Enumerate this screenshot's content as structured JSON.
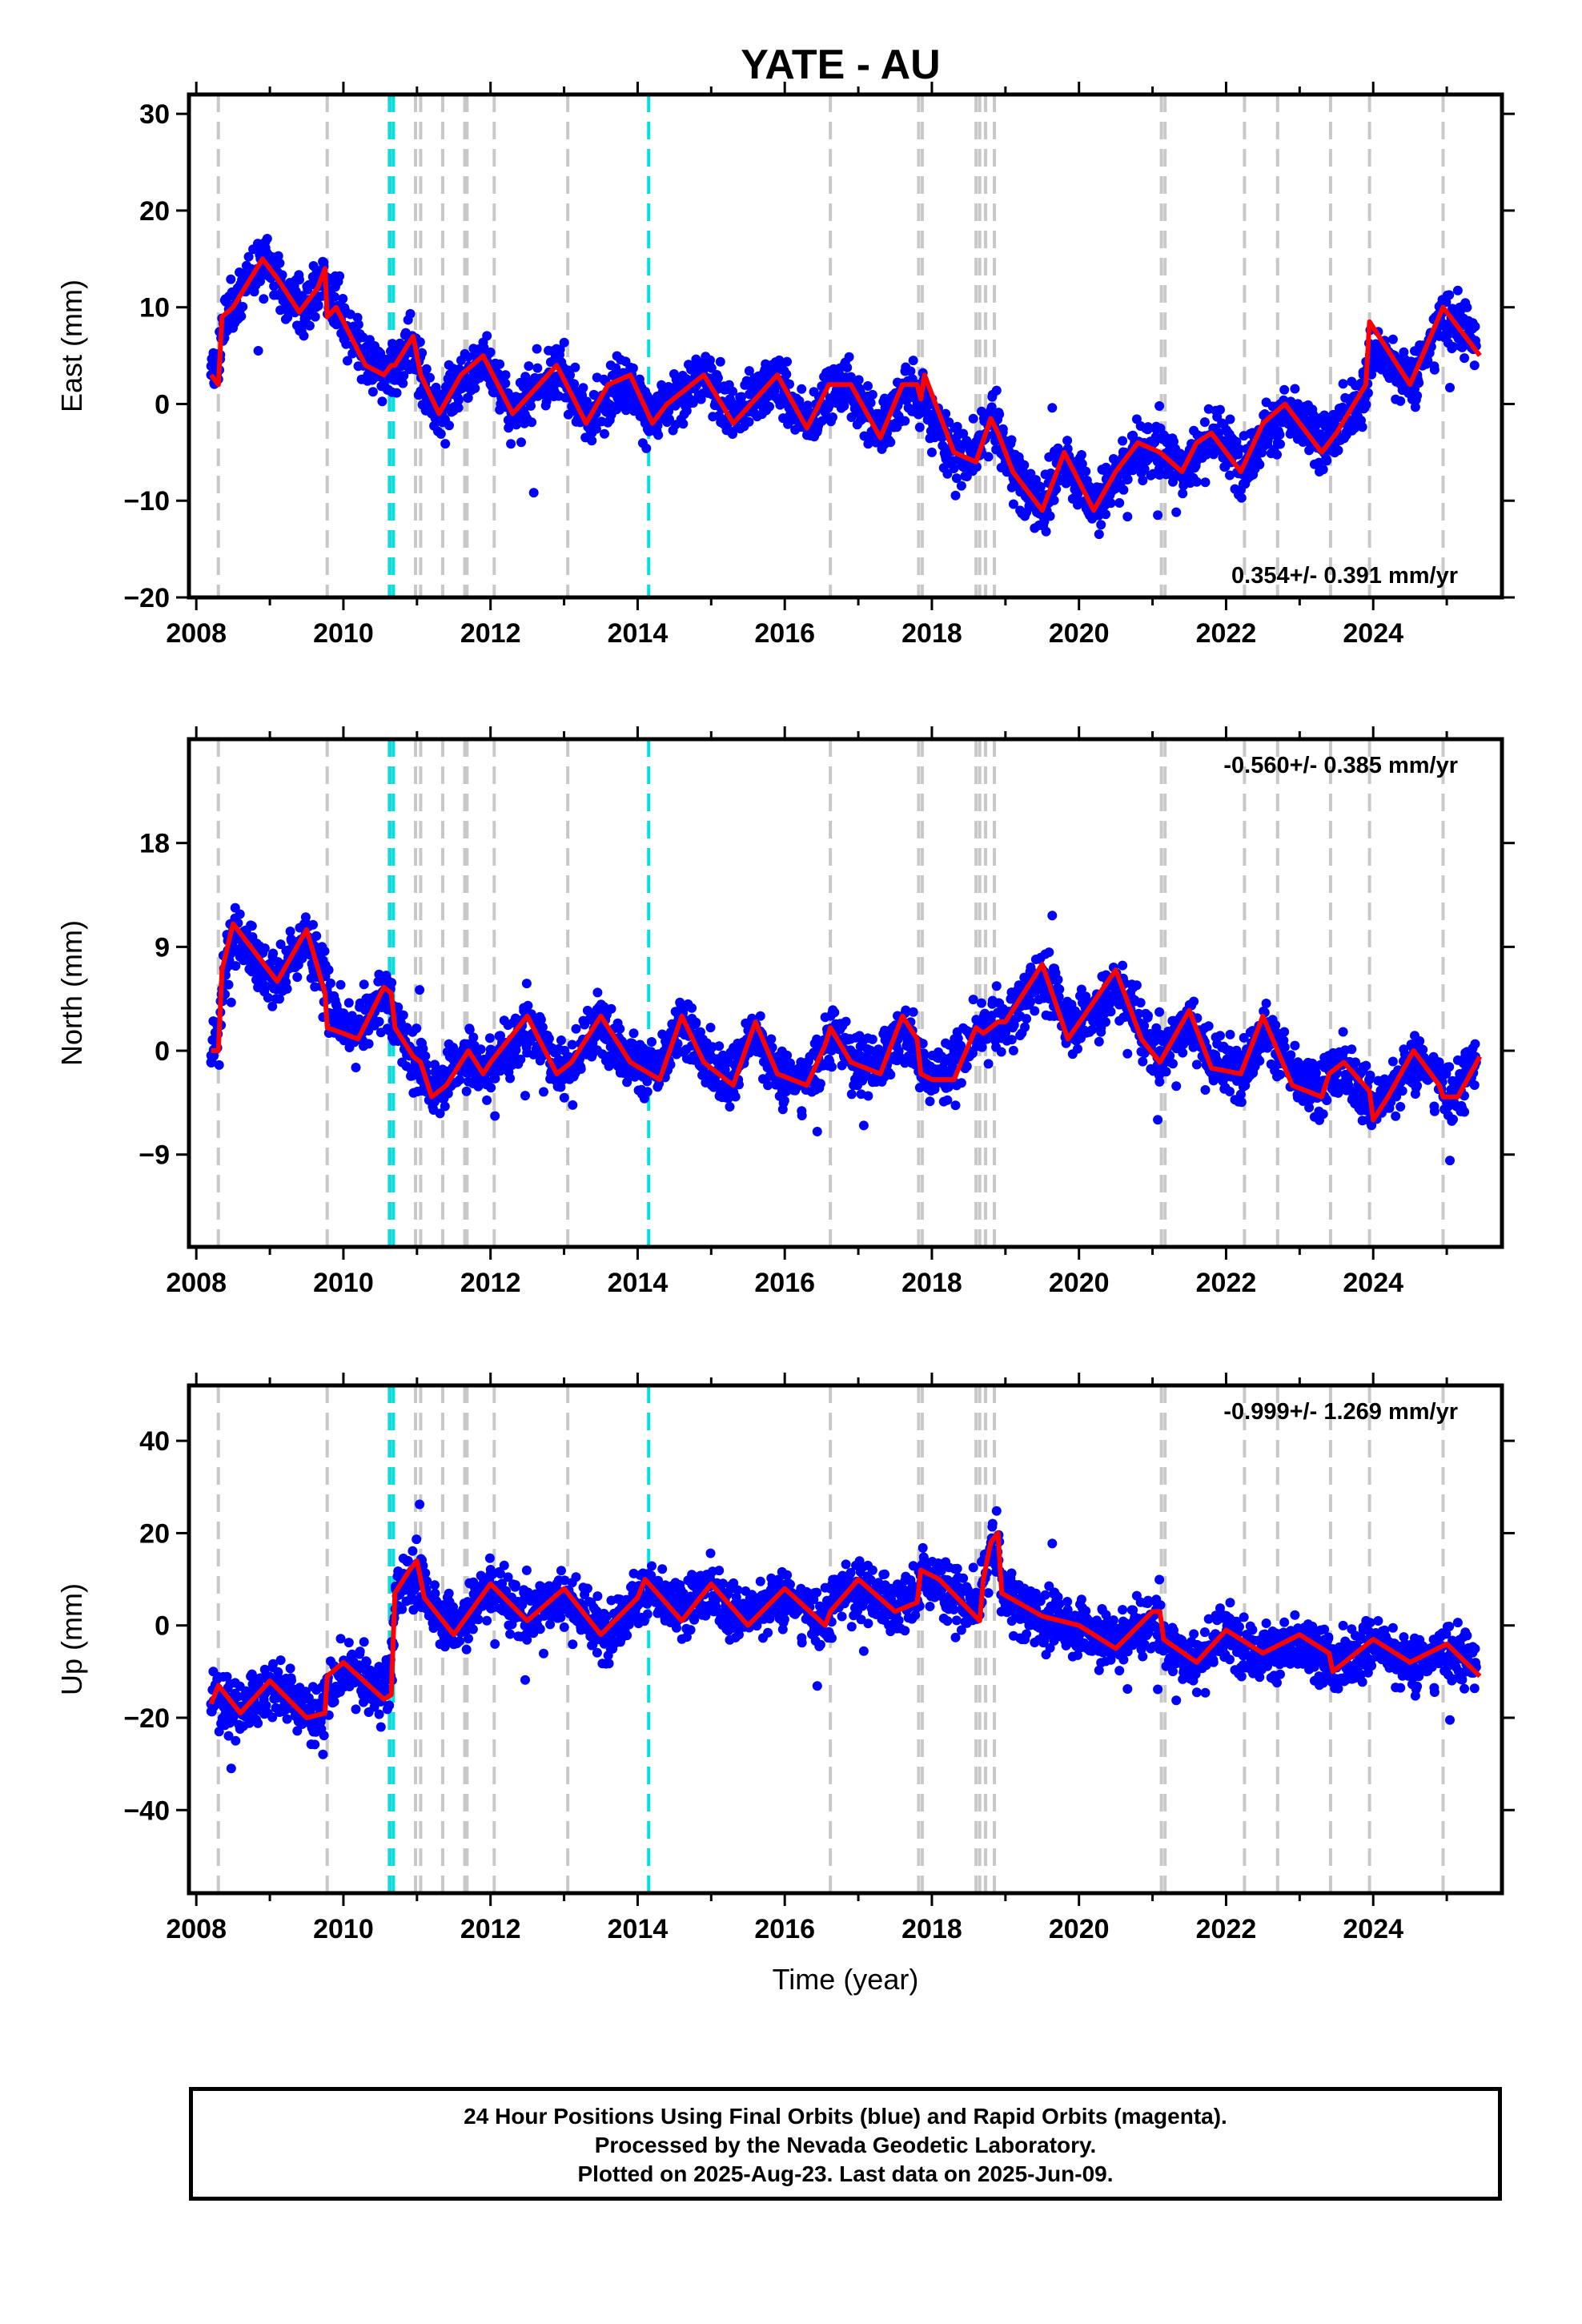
{
  "chart_data": [
    {
      "type": "scatter",
      "title": "YATE - AU",
      "ylabel": "East (mm)",
      "xlabel": "",
      "xlim": [
        2007.9,
        2025.75
      ],
      "ylim": [
        -20,
        32
      ],
      "x_ticks": [
        2008,
        2010,
        2012,
        2014,
        2016,
        2018,
        2020,
        2022,
        2024
      ],
      "y_ticks": [
        -20,
        -10,
        0,
        10,
        20,
        30
      ],
      "rate_label": "0.354+/- 0.391 mm/yr",
      "rate_position": "bottom-right",
      "series": [
        {
          "name": "24 hour positions (final orbits)",
          "color": "#0000ff",
          "x": [
            2008.2,
            2008.5,
            2008.9,
            2009.2,
            2009.5,
            2009.8,
            2010.0,
            2010.3,
            2010.6,
            2010.9,
            2011.2,
            2011.5,
            2011.9,
            2012.3,
            2012.6,
            2013.0,
            2013.4,
            2013.8,
            2014.2,
            2014.6,
            2014.9,
            2015.3,
            2015.8,
            2016.3,
            2016.8,
            2017.3,
            2017.7,
            2018.0,
            2018.4,
            2018.8,
            2019.2,
            2019.4,
            2019.9,
            2020.3,
            2020.8,
            2021.2,
            2021.5,
            2021.9,
            2022.3,
            2022.7,
            2023.0,
            2023.4,
            2023.8,
            2024.2,
            2024.6,
            2024.9,
            2025.2,
            2025.4
          ],
          "y": [
            3,
            10,
            15,
            12,
            10,
            13,
            8,
            4,
            3,
            6,
            -1,
            1,
            4,
            -1,
            2,
            3,
            -2,
            2,
            -2,
            1,
            3,
            0,
            2,
            -2,
            2,
            -2,
            1,
            -5,
            -6,
            -1,
            -8,
            -10,
            -6,
            -10,
            -6,
            -4,
            -7,
            -3,
            -6,
            -4,
            -2,
            -3,
            0,
            3,
            3,
            7,
            10,
            6
          ]
        },
        {
          "name": "model fit",
          "color": "#ff0000",
          "x": [
            2008.2,
            2008.3,
            2008.35,
            2008.5,
            2008.9,
            2009.1,
            2009.4,
            2009.65,
            2009.75,
            2009.78,
            2009.9,
            2010.1,
            2010.3,
            2010.55,
            2010.65,
            2010.7,
            2010.95,
            2011.05,
            2011.3,
            2011.6,
            2011.9,
            2012.3,
            2012.6,
            2012.9,
            2013.3,
            2013.6,
            2013.9,
            2014.2,
            2014.4,
            2014.9,
            2015.3,
            2015.9,
            2016.3,
            2016.6,
            2016.9,
            2017.3,
            2017.6,
            2017.8,
            2017.85,
            2017.9,
            2018.3,
            2018.6,
            2018.8,
            2018.9,
            2019.1,
            2019.5,
            2019.8,
            2020.2,
            2020.5,
            2020.8,
            2021.1,
            2021.4,
            2021.6,
            2021.8,
            2022.2,
            2022.5,
            2022.8,
            2023.3,
            2023.5,
            2023.9,
            2023.95,
            2024.5,
            2024.95,
            2025.45
          ],
          "y": [
            3,
            2,
            9,
            10,
            15,
            13,
            9.5,
            12,
            14,
            9,
            10,
            7,
            4,
            3,
            4,
            4,
            7,
            3,
            -1,
            3,
            5,
            -1,
            1.5,
            4,
            -2,
            2,
            3,
            -2,
            0,
            3,
            -2,
            3,
            -2.5,
            2,
            2,
            -3.5,
            2,
            2,
            0.5,
            3,
            -5,
            -6,
            -1.5,
            -3,
            -7,
            -11,
            -5,
            -11,
            -7,
            -4,
            -5,
            -7,
            -4,
            -3,
            -7,
            -2,
            0,
            -5,
            -3,
            2,
            8.5,
            2,
            10,
            5
          ]
        }
      ]
    },
    {
      "type": "scatter",
      "ylabel": "North (mm)",
      "xlabel": "",
      "xlim": [
        2007.9,
        2025.75
      ],
      "ylim": [
        -17,
        27
      ],
      "x_ticks": [
        2008,
        2010,
        2012,
        2014,
        2016,
        2018,
        2020,
        2022,
        2024
      ],
      "y_ticks": [
        -9,
        0,
        9,
        18
      ],
      "rate_label": "-0.560+/- 0.385 mm/yr",
      "rate_position": "top-right",
      "series": [
        {
          "name": "24 hour positions (final orbits)",
          "color": "#0000ff",
          "x": [
            2008.2,
            2008.5,
            2008.8,
            2009.1,
            2009.5,
            2009.8,
            2010.1,
            2010.5,
            2010.8,
            2011.1,
            2011.5,
            2011.9,
            2012.3,
            2012.7,
            2013.1,
            2013.5,
            2013.9,
            2014.3,
            2014.7,
            2015.1,
            2015.5,
            2015.9,
            2016.3,
            2016.7,
            2017.1,
            2017.5,
            2017.9,
            2018.3,
            2018.7,
            2019.1,
            2019.5,
            2019.9,
            2020.3,
            2020.7,
            2021.1,
            2021.5,
            2021.9,
            2022.3,
            2022.7,
            2023.1,
            2023.5,
            2023.9,
            2024.3,
            2024.7,
            2025.1,
            2025.4
          ],
          "y": [
            -1,
            9,
            8,
            6,
            9,
            7,
            2,
            4,
            2,
            -3,
            0,
            -2,
            -1,
            2,
            -2,
            2,
            -1,
            -1,
            2,
            -2,
            1,
            -2,
            -2,
            1,
            -1,
            1,
            -2,
            0,
            2,
            2,
            6,
            4,
            2,
            5,
            0,
            2,
            -1,
            -1,
            1,
            -3,
            -2,
            -4,
            -3,
            -1,
            -3,
            -1
          ]
        },
        {
          "name": "model fit",
          "color": "#ff0000",
          "x": [
            2008.2,
            2008.3,
            2008.35,
            2008.5,
            2009.1,
            2009.5,
            2009.75,
            2009.78,
            2010.0,
            2010.2,
            2010.55,
            2010.65,
            2010.7,
            2010.95,
            2011.05,
            2011.2,
            2011.4,
            2011.7,
            2011.9,
            2012.0,
            2012.5,
            2012.9,
            2013.1,
            2013.5,
            2013.9,
            2014.3,
            2014.6,
            2014.9,
            2015.3,
            2015.6,
            2015.9,
            2016.3,
            2016.55,
            2016.62,
            2016.9,
            2017.3,
            2017.6,
            2017.8,
            2017.85,
            2018.0,
            2018.3,
            2018.6,
            2018.7,
            2018.8,
            2018.9,
            2019.0,
            2019.5,
            2019.85,
            2020.5,
            2020.85,
            2021.1,
            2021.5,
            2021.8,
            2022.2,
            2022.5,
            2022.9,
            2023.3,
            2023.4,
            2023.6,
            2023.95,
            2024.0,
            2024.2,
            2024.55,
            2024.9,
            2024.95,
            2025.15,
            2025.45
          ],
          "y": [
            0,
            0,
            7,
            11,
            6,
            10.5,
            5,
            2,
            1.5,
            1,
            5.5,
            5,
            2,
            -0.5,
            -1,
            -4,
            -3,
            0,
            -2,
            -1,
            3,
            -2,
            -1,
            3,
            -1,
            -2.5,
            3,
            -1,
            -3,
            2.5,
            -2,
            -3,
            0.5,
            2,
            -1,
            -2,
            3,
            1,
            -2,
            -2.5,
            -2.5,
            2,
            1.5,
            2,
            2.5,
            2.5,
            7.5,
            1,
            7,
            1,
            -1,
            3.5,
            -1.5,
            -2,
            3,
            -3,
            -4,
            -2,
            -1,
            -3.5,
            -6,
            -4,
            0,
            -3,
            -4,
            -4,
            -0.5
          ]
        }
      ]
    },
    {
      "type": "scatter",
      "ylabel": "Up (mm)",
      "xlabel": "Time (year)",
      "xlim": [
        2007.9,
        2025.75
      ],
      "ylim": [
        -58,
        52
      ],
      "x_ticks": [
        2008,
        2010,
        2012,
        2014,
        2016,
        2018,
        2020,
        2022,
        2024
      ],
      "y_ticks": [
        -40,
        -20,
        0,
        20,
        40
      ],
      "rate_label": "-0.999+/- 1.269 mm/yr",
      "rate_position": "top-right",
      "series": [
        {
          "name": "24 hour positions (final orbits)",
          "color": "#0000ff",
          "x": [
            2008.2,
            2008.5,
            2008.9,
            2009.3,
            2009.7,
            2010.1,
            2010.5,
            2010.8,
            2011.2,
            2011.6,
            2012.0,
            2012.4,
            2012.8,
            2013.2,
            2013.6,
            2014.0,
            2014.4,
            2014.8,
            2015.2,
            2015.6,
            2016.0,
            2016.4,
            2016.8,
            2017.2,
            2017.6,
            2018.0,
            2018.4,
            2018.8,
            2019.2,
            2019.6,
            2020.0,
            2020.4,
            2020.8,
            2021.2,
            2021.6,
            2022.0,
            2022.4,
            2022.8,
            2023.2,
            2023.6,
            2024.0,
            2024.4,
            2024.8,
            2025.2,
            2025.4
          ],
          "y": [
            -17,
            -20,
            -14,
            -15,
            -20,
            -10,
            -14,
            10,
            6,
            2,
            8,
            3,
            7,
            2,
            -2,
            5,
            4,
            8,
            3,
            6,
            5,
            2,
            7,
            5,
            8,
            8,
            5,
            14,
            2,
            1,
            0,
            -2,
            -1,
            -5,
            -7,
            -3,
            -6,
            -8,
            -9,
            -8,
            -4,
            -8,
            -9,
            -5,
            -9
          ]
        },
        {
          "name": "model fit",
          "color": "#ff0000",
          "x": [
            2008.2,
            2008.3,
            2008.6,
            2009.0,
            2009.5,
            2009.75,
            2009.78,
            2010.0,
            2010.55,
            2010.65,
            2010.7,
            2010.9,
            2011.0,
            2011.1,
            2011.5,
            2012.0,
            2012.5,
            2013.0,
            2013.5,
            2014.0,
            2014.1,
            2014.6,
            2015.0,
            2015.5,
            2016.0,
            2016.55,
            2016.62,
            2017.0,
            2017.5,
            2017.8,
            2017.85,
            2018.1,
            2018.65,
            2018.7,
            2018.8,
            2018.9,
            2018.95,
            2019.5,
            2020.0,
            2020.5,
            2021.0,
            2021.1,
            2021.15,
            2021.6,
            2022.0,
            2022.5,
            2023.0,
            2023.4,
            2023.45,
            2024.0,
            2024.5,
            2025.0,
            2025.45
          ],
          "y": [
            -17,
            -13,
            -19,
            -12,
            -20,
            -19,
            -11,
            -8,
            -16,
            -15,
            7,
            12,
            14,
            6,
            -2,
            9,
            1,
            8,
            -2,
            6,
            10,
            1,
            9,
            0,
            8,
            0,
            3,
            10,
            3,
            5,
            12,
            10,
            1,
            10,
            18,
            20,
            7,
            2,
            0,
            -5,
            3,
            3,
            -3,
            -8,
            -1,
            -6,
            -2,
            -6,
            -10,
            -3,
            -8,
            -4,
            -11
          ]
        }
      ]
    }
  ],
  "event_markers": {
    "gray_dashed": [
      2008.3,
      2009.78,
      2010.62,
      2010.67,
      2010.98,
      2011.05,
      2011.35,
      2011.65,
      2011.68,
      2012.05,
      2013.05,
      2016.62,
      2017.82,
      2017.87,
      2018.6,
      2018.65,
      2018.73,
      2018.85,
      2021.12,
      2021.17,
      2022.25,
      2022.7,
      2023.42,
      2023.95,
      2024.95
    ],
    "cyan_dashed": [
      2010.63,
      2010.68,
      2014.15
    ],
    "gray_color": "#c8c8c8",
    "cyan_color": "#00e0e0"
  },
  "footer": {
    "line1": "24 Hour Positions Using Final Orbits (blue) and Rapid Orbits (magenta).",
    "line2": "Processed by the Nevada Geodetic Laboratory.",
    "line3": "Plotted on 2025-Aug-23. Last data on 2025-Jun-09."
  }
}
